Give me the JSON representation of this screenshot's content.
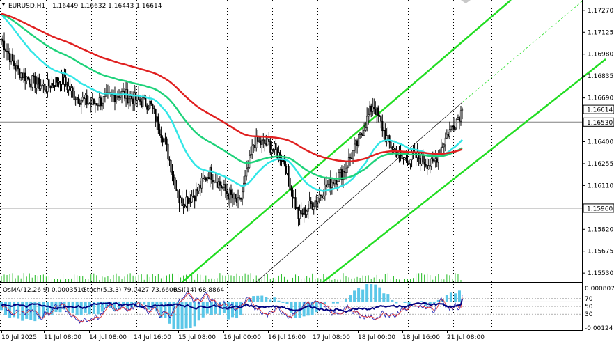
{
  "header": {
    "symbol_label": "EURUSD,H1",
    "ohlc": "1.16449 1.16632 1.16443 1.16614"
  },
  "indicator_header": {
    "osma": "OsMA(12,26,9) 0.0003510",
    "stoch": "Stoch(5,3,3) 79.0427 73.6606",
    "rsi": "RSI(14) 68.8864"
  },
  "colors": {
    "background": "#ffffff",
    "candles": "#000000",
    "grid": "#000000",
    "ema_fast": "#32e6e6",
    "ema_mid": "#1ed27a",
    "ema_slow": "#e02020",
    "channel": "#22dd22",
    "level_line": "#808080",
    "osma_hist": "#5bc7e8",
    "stoch_main": "#1a1ab0",
    "stoch_signal": "#e03030",
    "rsi": "#000080",
    "volume": "#22bb22",
    "price_tag_bg": "#ffffff"
  },
  "chart_data": {
    "type": "candlestick",
    "symbol": "EURUSD",
    "timeframe": "H1",
    "ylim": [
      1.1548,
      1.1732
    ],
    "price_axis_ticks": [
      "1.17270",
      "1.17125",
      "1.16980",
      "1.16835",
      "1.16690",
      "1.16400",
      "1.16255",
      "1.16110",
      "1.15820",
      "1.15675",
      "1.15530"
    ],
    "marked_levels": [
      "1.16614",
      "1.16530",
      "1.15960"
    ],
    "time_axis_labels": [
      "10 Jul 2025",
      "11 Jul 08:00",
      "14 Jul 08:00",
      "14 Jul 16:00",
      "15 Jul 08:00",
      "16 Jul 00:00",
      "16 Jul 16:00",
      "17 Jul 08:00",
      "18 Jul 00:00",
      "18 Jul 16:00",
      "21 Jul 08:00"
    ],
    "ema_series_names": [
      "EMA fast",
      "EMA mid",
      "EMA slow"
    ],
    "key_closes": [
      1.1708,
      1.1688,
      1.168,
      1.1676,
      1.1682,
      1.167,
      1.1665,
      1.1668,
      1.1672,
      1.1668,
      1.1665,
      1.164,
      1.16,
      1.1605,
      1.162,
      1.1608,
      1.1598,
      1.164,
      1.1638,
      1.1628,
      1.159,
      1.16,
      1.1612,
      1.162,
      1.164,
      1.1665,
      1.164,
      1.1628,
      1.163,
      1.1624,
      1.1645,
      1.1661
    ]
  },
  "subwindow": {
    "ylim": [
      -0.00124,
      0.000807
    ],
    "axis_ticks": [
      "0.000807",
      "70",
      "50",
      "30",
      "-0.00124"
    ],
    "levels": [
      70,
      50,
      30
    ]
  }
}
